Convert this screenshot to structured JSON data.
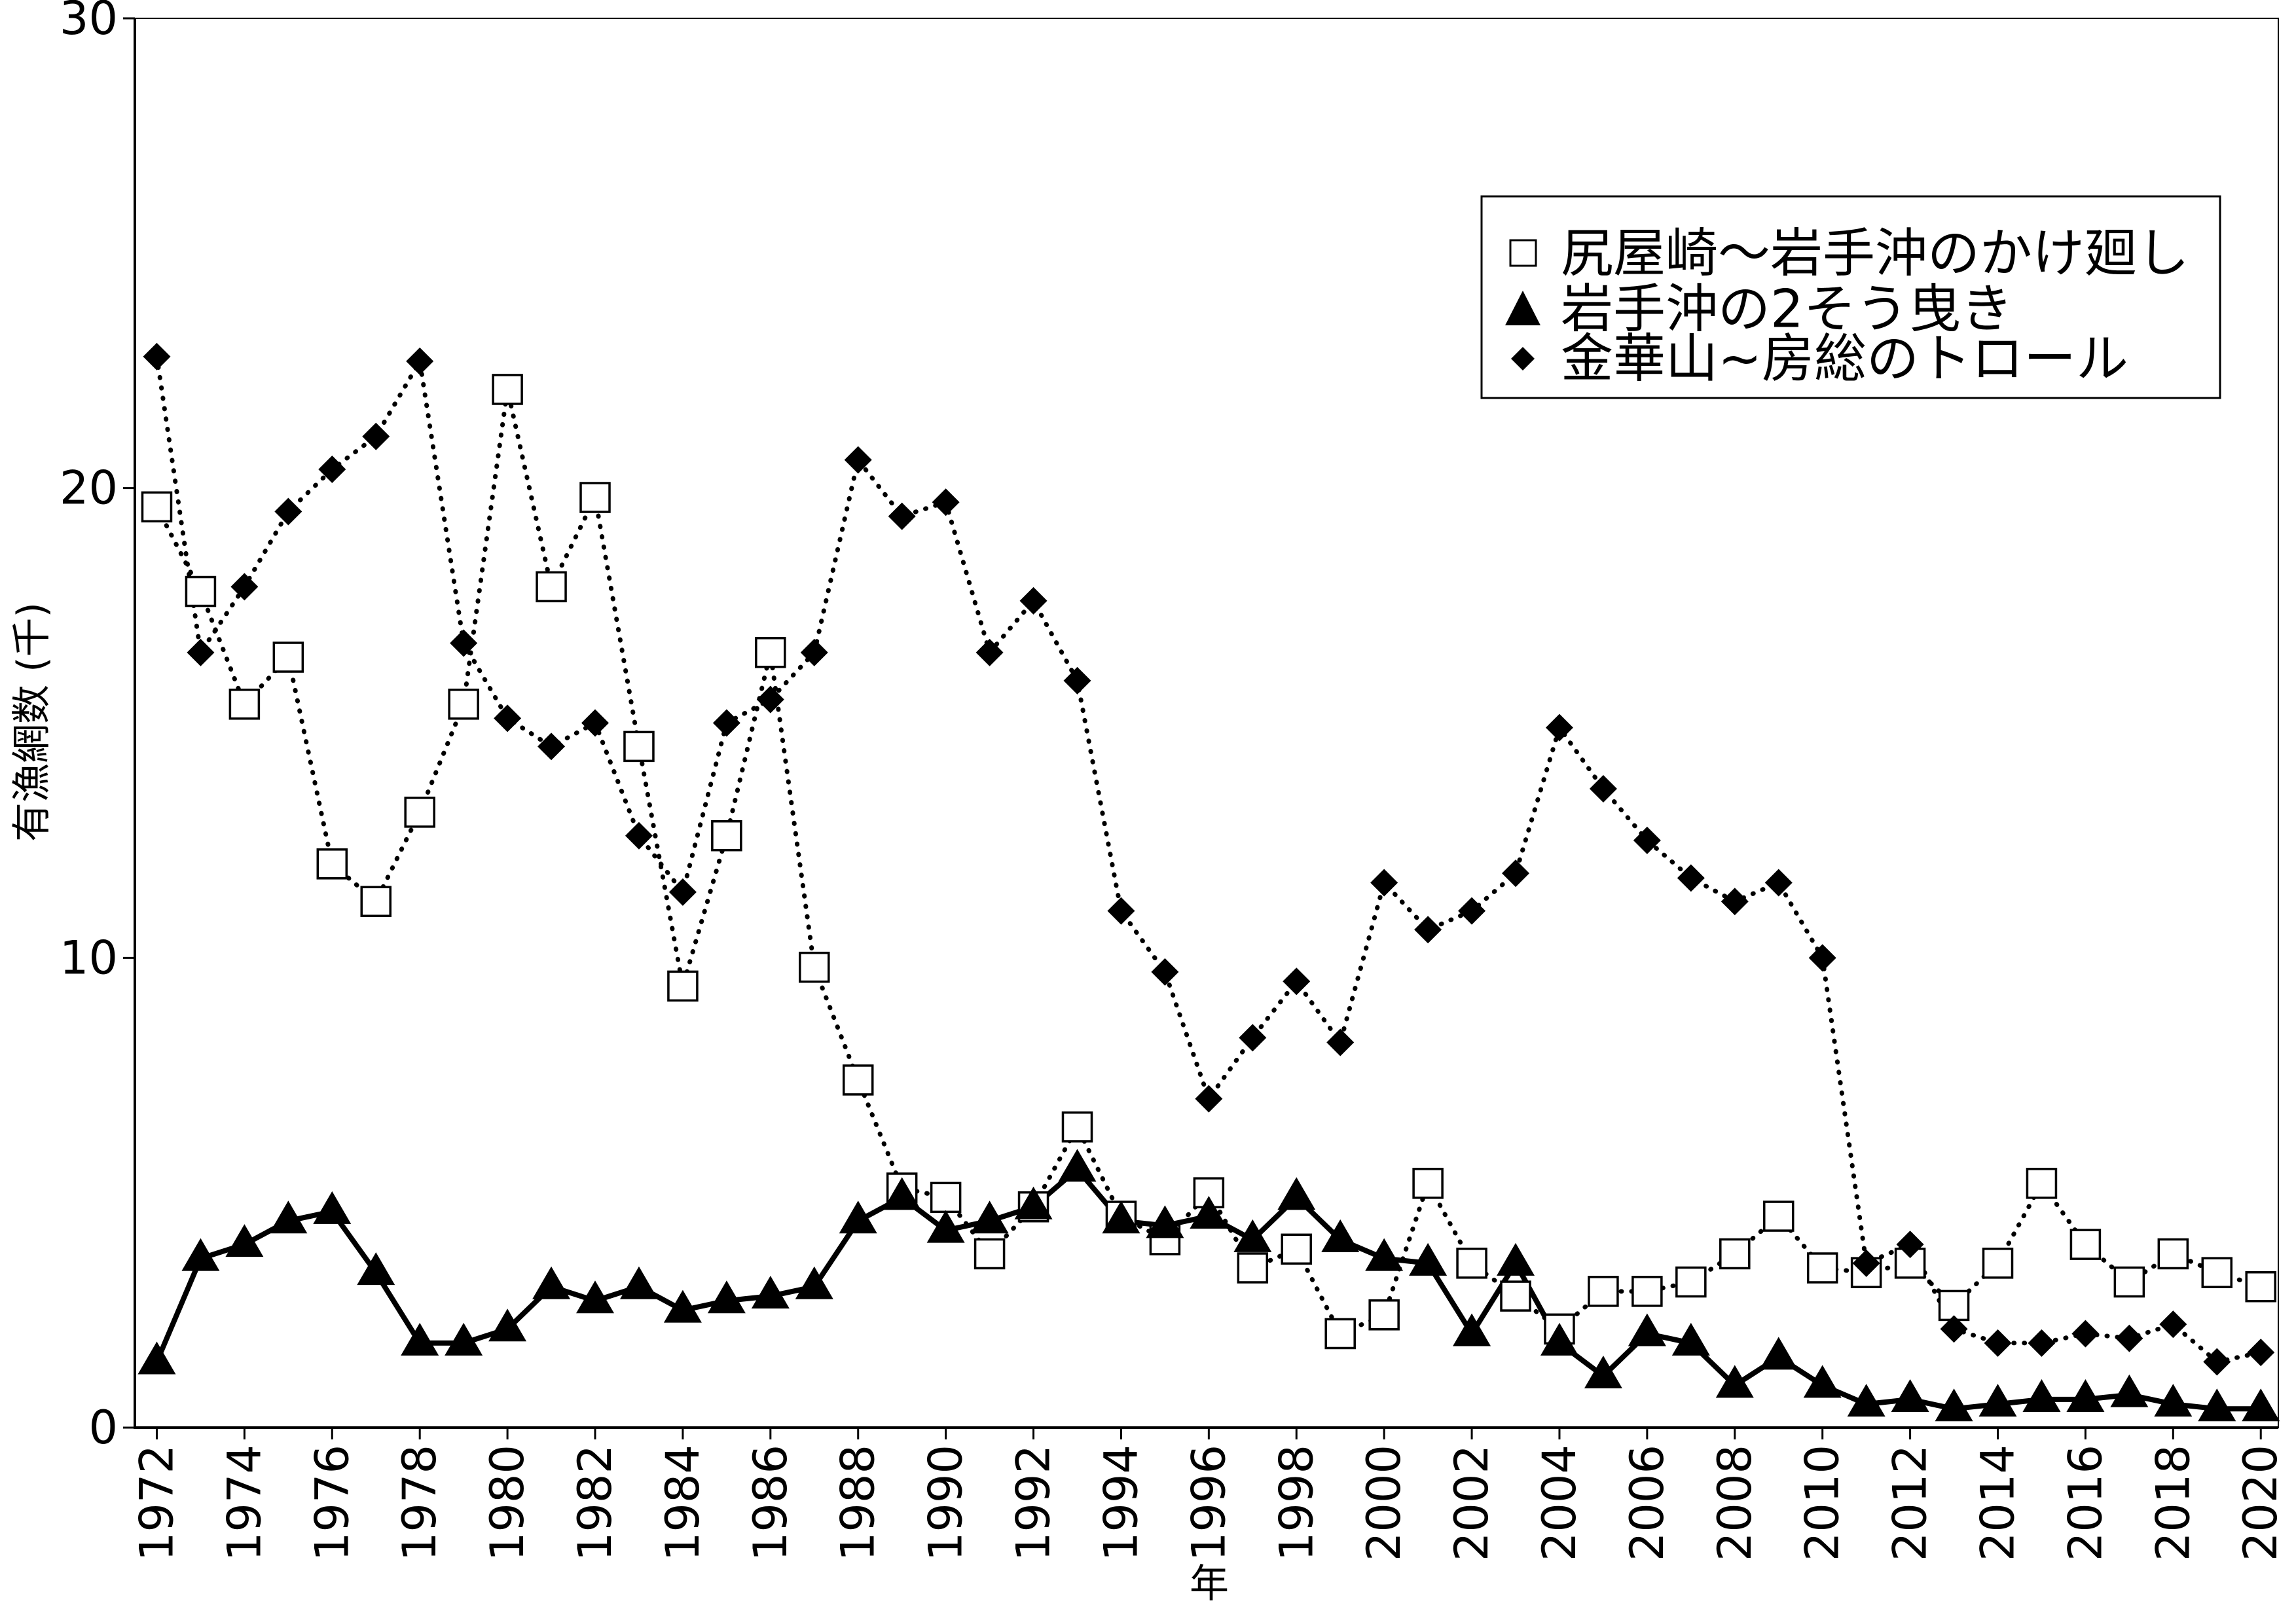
{
  "chart_data": {
    "type": "line",
    "xlabel": "年",
    "ylabel": "有漁網数 (千)",
    "x": [
      1972,
      1973,
      1974,
      1975,
      1976,
      1977,
      1978,
      1979,
      1980,
      1981,
      1982,
      1983,
      1984,
      1985,
      1986,
      1987,
      1988,
      1989,
      1990,
      1991,
      1992,
      1993,
      1994,
      1995,
      1996,
      1997,
      1998,
      1999,
      2000,
      2001,
      2002,
      2003,
      2004,
      2005,
      2006,
      2007,
      2008,
      2009,
      2010,
      2011,
      2012,
      2013,
      2014,
      2015,
      2016,
      2017,
      2018,
      2019,
      2020
    ],
    "xticks": [
      "1972",
      "1974",
      "1976",
      "1978",
      "1980",
      "1982",
      "1984",
      "1986",
      "1988",
      "1990",
      "1992",
      "1994",
      "1996",
      "1998",
      "2000",
      "2002",
      "2004",
      "2006",
      "2008",
      "2010",
      "2012",
      "2014",
      "2016",
      "2018",
      "2020"
    ],
    "yticks": [
      "0",
      "10",
      "20",
      "30"
    ],
    "xlim": [
      1971.5,
      2020.4
    ],
    "ylim": [
      0,
      30
    ],
    "grid": false,
    "legend_position": "top-right",
    "series": [
      {
        "name": "尻屋崎～岩手沖のかけ廻し",
        "marker": "square-open",
        "line_style": "dotted",
        "color": "#000000",
        "values": [
          19.6,
          17.8,
          15.4,
          16.4,
          12.0,
          11.2,
          13.1,
          15.4,
          22.1,
          17.9,
          19.8,
          14.5,
          9.4,
          12.6,
          16.5,
          9.8,
          7.4,
          5.1,
          4.9,
          3.7,
          4.7,
          6.4,
          4.5,
          4.0,
          5.0,
          3.4,
          3.8,
          2.0,
          2.4,
          5.2,
          3.5,
          2.8,
          2.1,
          2.9,
          2.9,
          3.1,
          3.7,
          4.5,
          3.4,
          3.3,
          3.5,
          2.6,
          3.5,
          5.2,
          3.9,
          3.1,
          3.7,
          3.3,
          3.0
        ]
      },
      {
        "name": "岩手沖の2そう曳き",
        "marker": "triangle-filled",
        "line_style": "solid",
        "color": "#000000",
        "values": [
          1.4,
          3.6,
          3.9,
          4.4,
          4.6,
          3.3,
          1.8,
          1.8,
          2.1,
          3.0,
          2.7,
          3.0,
          2.5,
          2.7,
          2.8,
          3.0,
          4.4,
          4.9,
          4.2,
          4.4,
          4.7,
          5.5,
          4.4,
          4.3,
          4.5,
          4.0,
          4.9,
          4.0,
          3.6,
          3.5,
          2.0,
          3.5,
          1.8,
          1.1,
          2.0,
          1.8,
          0.9,
          1.5,
          0.9,
          0.5,
          0.6,
          0.4,
          0.5,
          0.6,
          0.6,
          0.7,
          0.5,
          0.4,
          0.4
        ]
      },
      {
        "name": "金華山~房総のトロール",
        "marker": "diamond-filled",
        "line_style": "dotted",
        "color": "#000000",
        "values": [
          22.8,
          16.5,
          17.9,
          19.5,
          20.4,
          21.1,
          22.7,
          16.7,
          15.1,
          14.5,
          15.0,
          12.6,
          11.4,
          15.0,
          15.5,
          16.5,
          20.6,
          19.4,
          19.7,
          16.5,
          17.6,
          15.9,
          11.0,
          9.7,
          7.0,
          8.3,
          9.5,
          8.2,
          11.6,
          10.6,
          11.0,
          11.8,
          14.9,
          13.6,
          12.5,
          11.7,
          11.2,
          11.6,
          10.0,
          3.5,
          3.9,
          2.1,
          1.8,
          1.8,
          2.0,
          1.9,
          2.2,
          1.4,
          1.6
        ]
      }
    ]
  }
}
